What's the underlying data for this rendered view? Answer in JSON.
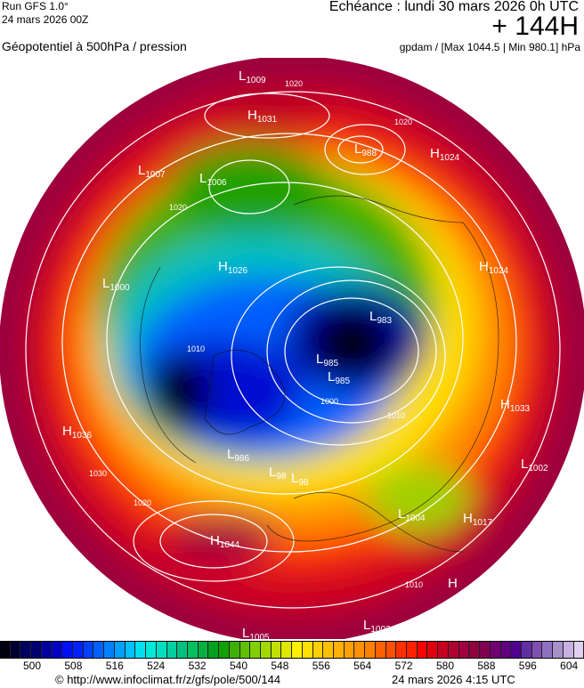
{
  "header": {
    "run": "Run GFS 1.0°",
    "run_date": "24 mars 2026 00Z",
    "parameter": "Géopotentiel à 500hPa / pression",
    "echeance": "Echéance : lundi 30 mars 2026 0h UTC",
    "lead_time": "+ 144H",
    "units": "gpdam / [Max 1044.5 | Min 980.1] hPa"
  },
  "map": {
    "projection": "polar stereographic (north pole)",
    "field": "500hPa geopotential (shaded) and sea-level pressure isobars (white)",
    "pressure_centers": [
      {
        "type": "L",
        "value": "1009"
      },
      {
        "type": "H",
        "value": "1031"
      },
      {
        "type": "L",
        "value": "988"
      },
      {
        "type": "H",
        "value": "1024"
      },
      {
        "type": "L",
        "value": "1007"
      },
      {
        "type": "L",
        "value": "1006"
      },
      {
        "type": "H",
        "value": "1026"
      },
      {
        "type": "L",
        "value": "1000"
      },
      {
        "type": "L",
        "value": "983"
      },
      {
        "type": "L",
        "value": "985"
      },
      {
        "type": "L",
        "value": "985"
      },
      {
        "type": "H",
        "value": "1024"
      },
      {
        "type": "H",
        "value": "1036"
      },
      {
        "type": "H",
        "value": "1033"
      },
      {
        "type": "L",
        "value": "1002"
      },
      {
        "type": "L",
        "value": "986"
      },
      {
        "type": "L",
        "value": "98"
      },
      {
        "type": "L",
        "value": "98"
      },
      {
        "type": "H",
        "value": "1044"
      },
      {
        "type": "L",
        "value": "1004"
      },
      {
        "type": "H",
        "value": "1017"
      },
      {
        "type": "L",
        "value": "1003"
      },
      {
        "type": "L",
        "value": "1005"
      },
      {
        "type": "H",
        "value": ""
      }
    ],
    "isobar_labels": [
      "1020",
      "1020",
      "1020",
      "1010",
      "1000",
      "1030",
      "1020",
      "1010",
      "1010"
    ]
  },
  "colorbar": {
    "ticks": [
      "500",
      "508",
      "516",
      "524",
      "532",
      "540",
      "548",
      "556",
      "564",
      "572",
      "580",
      "588",
      "596",
      "604"
    ],
    "colors": [
      "#000010",
      "#000030",
      "#000060",
      "#000070",
      "#0000a0",
      "#0000c8",
      "#0010f0",
      "#0020ff",
      "#0040ff",
      "#0060ff",
      "#0080ff",
      "#00a0ff",
      "#00c0ff",
      "#00e0f0",
      "#00e8d8",
      "#00e0c0",
      "#00d0a0",
      "#00c080",
      "#00c060",
      "#00b040",
      "#00a020",
      "#10a000",
      "#40b000",
      "#60c000",
      "#80d000",
      "#a0d800",
      "#c0e000",
      "#e0e800",
      "#fff000",
      "#ffe000",
      "#ffd000",
      "#ffc000",
      "#ffb000",
      "#ffa000",
      "#ff9000",
      "#ff8000",
      "#ff6000",
      "#ff5000",
      "#ff3000",
      "#ff2000",
      "#ff0000",
      "#e00010",
      "#c80020",
      "#b00030",
      "#a00040",
      "#900040",
      "#800050",
      "#700070",
      "#600080",
      "#500090",
      "#6030a0",
      "#8050b0",
      "#9070c0",
      "#a890c8",
      "#c8b0e0",
      "#e0d0f0"
    ]
  },
  "footer": {
    "url": "© http://www.infoclimat.fr/z/gfs/pole/500/144",
    "generated": "24 mars 2026  4:15 UTC"
  }
}
